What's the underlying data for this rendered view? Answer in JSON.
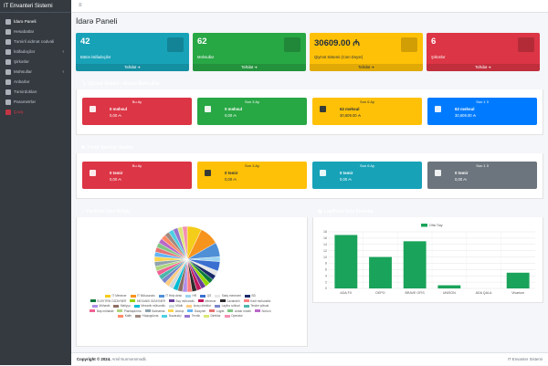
{
  "app": {
    "brand": "IT Envanteri Sistemi",
    "page_title": "İdarə Paneli"
  },
  "sidebar": {
    "items": [
      {
        "label": "İdarə Paneli",
        "icon": "dashboard-icon",
        "active": true
      },
      {
        "label": "Hesabatlar",
        "icon": "report-icon"
      },
      {
        "label": "Təmirli xidmət cədvəli",
        "icon": "tools-icon"
      },
      {
        "label": "İstifadəçilər",
        "icon": "users-icon",
        "has_children": true
      },
      {
        "label": "Şirkətlər",
        "icon": "building-icon"
      },
      {
        "label": "Məhsullar",
        "icon": "box-icon",
        "has_children": true
      },
      {
        "label": "Anbarlar",
        "icon": "warehouse-icon"
      },
      {
        "label": "Təmirdokları",
        "icon": "wrench-icon"
      },
      {
        "label": "Parametrlər",
        "icon": "gear-icon"
      },
      {
        "label": "Çıxış",
        "icon": "logout-icon",
        "logout": true
      }
    ]
  },
  "stat_boxes": [
    {
      "value": "42",
      "label": "Bütün İstifadəçilər",
      "footer": "Tafsilat ➔",
      "color": "#17a2b8",
      "icon": "users-icon"
    },
    {
      "value": "62",
      "label": "Məhsullar",
      "footer": "Tafsilat ➔",
      "color": "#28a745",
      "icon": "laptop-icon"
    },
    {
      "value": "30609.00 ₼",
      "label": "Qiymət Sistemi (Cəm Dəyər)",
      "footer": "Tafsilat ➔",
      "color": "#ffc107",
      "icon": "money-icon"
    },
    {
      "value": "6",
      "label": "Şirkətlər",
      "footer": "Tafsilat ➔",
      "color": "#dc3545",
      "icon": "building-icon"
    }
  ],
  "price_analysis": {
    "title": "Qiymət Analizi - Alınan Məhsullar",
    "color": "#17a2b8",
    "items": [
      {
        "period": "Bu Ay",
        "value": "0 məhsul",
        "sub": "0,00 ₼",
        "color": "#dc3545"
      },
      {
        "period": "Son 3 Ay",
        "value": "0 məhsul",
        "sub": "0,00 ₼",
        "color": "#28a745"
      },
      {
        "period": "Son 6 Ay",
        "value": "62 məhsul",
        "sub": "30,609.00 ₼",
        "color": "#ffc107",
        "dark": true
      },
      {
        "period": "Son 1 İl",
        "value": "62 məhsul",
        "sub": "30,609.00 ₼",
        "color": "#007bff"
      }
    ]
  },
  "repair_analysis": {
    "title": "Təmir Xərcləri Analizi",
    "color": "#dc3545",
    "items": [
      {
        "period": "Bu Ay",
        "value": "0 təmir",
        "sub": "0,00 ₼",
        "color": "#dc3545"
      },
      {
        "period": "Son 3 Ay",
        "value": "0 təmir",
        "sub": "0,00 ₼",
        "color": "#ffc107",
        "dark": true
      },
      {
        "period": "Son 6 Ay",
        "value": "0 təmir",
        "sub": "0,00 ₼",
        "color": "#17a2b8"
      },
      {
        "period": "Son 1 İl",
        "value": "0 təmir",
        "sub": "0,00 ₼",
        "color": "#6c757d"
      }
    ]
  },
  "positions_card": {
    "title": "Vəzifələr üzrə Bölgü",
    "color": "#007bff"
  },
  "projects_card": {
    "title": "Layihələr üzrə İnventar",
    "color": "#28a745"
  },
  "chart_data": [
    {
      "type": "pie",
      "categories": [
        "IT Menecer",
        "IT Mütəxəssis",
        "IT Help desk",
        "HR",
        "QS",
        "Satış meneceri",
        "BD",
        "ELEKTRİK DİZAYNER",
        "MEXANİK DİZAYNER",
        "Bəy mühəndis",
        "Menecer",
        "Cavabdeh",
        "Kadr mühəndisi",
        "Mühasib",
        "Maliyyə",
        "Mexanik mühəndis",
        "Müdir",
        "İcraçı direktor",
        "Layihə rəhbəri",
        "Tender şöbəsi",
        "Baş mühasib",
        "Planlaşdırma",
        "Satınalma",
        "Arxivçi",
        "Dizayner",
        "Logist",
        "Anbar müdiri",
        "Sürücü",
        "Katib",
        "Hüquqşünas",
        "Nəzarətçi",
        "Texnik",
        "Direktor",
        "Operator"
      ],
      "values": [
        3,
        4,
        3,
        1,
        2,
        1,
        1,
        1,
        1,
        1,
        1,
        1,
        1,
        1,
        1,
        1,
        1,
        1,
        1,
        1,
        1,
        1,
        1,
        1,
        1,
        1,
        1,
        1,
        1,
        1,
        1,
        1,
        1,
        1
      ],
      "colors": [
        "#f4cc1a",
        "#f7941d",
        "#4f8fd6",
        "#9cd3f0",
        "#3b6fd0",
        "#e6e6e6",
        "#1a2a6b",
        "#0b7a3e",
        "#95d600",
        "#6a3d9a",
        "#c2185b",
        "#2b2b2b",
        "#ff7f7f",
        "#b08ee8",
        "#8d6e63",
        "#00bcd4",
        "#cfd8dc",
        "#ffcc80",
        "#7986cb",
        "#4db6ac",
        "#f06292",
        "#aed581",
        "#90a4ae",
        "#ffd54f",
        "#64b5f6",
        "#e57373",
        "#81c784",
        "#ba68c8",
        "#ff8a65",
        "#a1887f",
        "#4dd0e1",
        "#9575cd",
        "#dce775",
        "#f48fb1"
      ]
    },
    {
      "type": "bar",
      "categories": [
        "ADA FX",
        "DEPO",
        "BRAVE OFİS",
        "UNISON",
        "ADA QALA",
        "Vivarium"
      ],
      "series": [
        {
          "name": "Ofis/ Say",
          "values": [
            17,
            10,
            15,
            1,
            0,
            5
          ]
        }
      ],
      "ylim": [
        0,
        18
      ],
      "yticks": [
        0,
        2,
        4,
        6,
        8,
        10,
        12,
        14,
        16,
        18
      ],
      "color": "#1aa35a",
      "legend": "top-center"
    }
  ],
  "footer": {
    "copyright_label": "Copyright © 2024.",
    "author": "Amil Nurməmmədli.",
    "right": "IT Envanter Sistemi"
  }
}
